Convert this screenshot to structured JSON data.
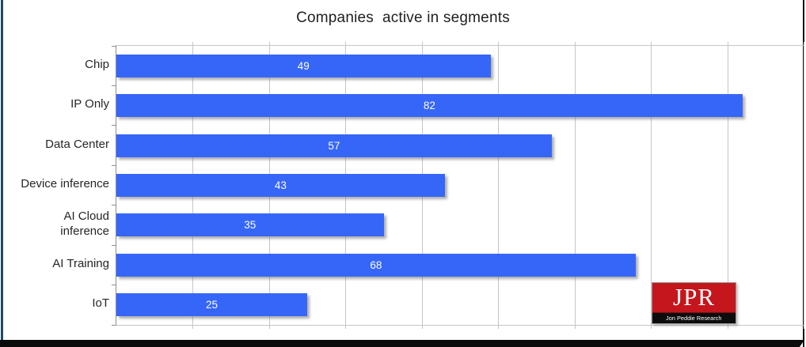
{
  "chart_data": {
    "type": "bar",
    "orientation": "horizontal",
    "title": "Companies  active in segments",
    "categories": [
      "Chip",
      "IP Only",
      "Data Center",
      "Device inference",
      "AI Cloud\ninference",
      "AI Training",
      "IoT"
    ],
    "values": [
      49,
      82,
      57,
      43,
      35,
      68,
      25
    ],
    "xlim": [
      0,
      90
    ],
    "gridline_interval": 10,
    "grid": true,
    "legend": "none",
    "bar_color": "#3666f8",
    "value_label_color": "#ffffff"
  },
  "logo": {
    "acronym": "JPR",
    "caption": "Jon Peddie Research",
    "background_color": "#c4161c"
  }
}
